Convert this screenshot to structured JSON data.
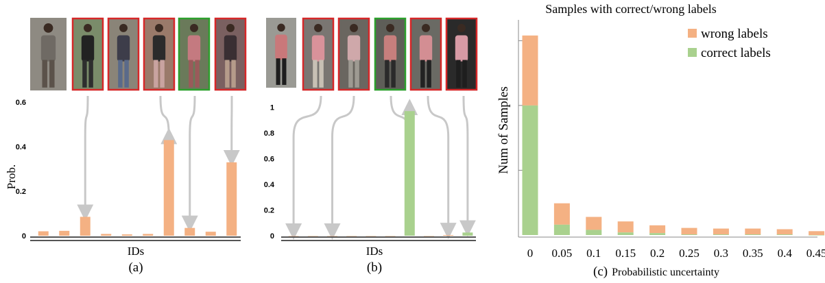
{
  "colors": {
    "wrong": "#F4B183",
    "correct": "#A9D18E",
    "red_border": "#D62728",
    "green_border": "#2CA02C",
    "arrow": "#C8C8C8",
    "axis": "#555555"
  },
  "panel_a": {
    "caption": "(a)",
    "xlabel": "IDs",
    "ylabel": "Prob.",
    "query_photo": "person-photo",
    "gallery_frames": [
      "red",
      "red",
      "red",
      "green",
      "red"
    ]
  },
  "panel_b": {
    "caption": "(b)",
    "xlabel": "IDs",
    "query_photo": "person-photo",
    "gallery_frames": [
      "red",
      "red",
      "green",
      "red",
      "red"
    ]
  },
  "panel_c": {
    "caption": "(c)",
    "xlabel_suffix": "Probabilistic uncertainty"
  },
  "chart_data": [
    {
      "type": "bar",
      "title": "",
      "xlabel": "IDs",
      "ylabel": "Prob.",
      "ylim": [
        0,
        0.65
      ],
      "yticks": [
        "0",
        "0.2",
        "0.4",
        "0.6"
      ],
      "ytick_values": [
        0,
        0.2,
        0.4,
        0.6
      ],
      "values": [
        0.02,
        0.022,
        0.085,
        0.008,
        0.006,
        0.008,
        0.43,
        0.035,
        0.018,
        0.33
      ],
      "bar_colors": [
        "wrong",
        "wrong",
        "wrong",
        "wrong",
        "wrong",
        "wrong",
        "wrong",
        "wrong",
        "wrong",
        "wrong"
      ],
      "arrow_targets": [
        2,
        6,
        7,
        9
      ]
    },
    {
      "type": "bar",
      "title": "",
      "xlabel": "IDs",
      "ylabel": "",
      "ylim": [
        0,
        1.12
      ],
      "yticks": [
        "0",
        "0.2",
        "0.4",
        "0.6",
        "0.8",
        "1"
      ],
      "ytick_values": [
        0,
        0.2,
        0.4,
        0.6,
        0.8,
        1
      ],
      "values": [
        0,
        0,
        0,
        0,
        0,
        0,
        0.97,
        0,
        0.005,
        0.025
      ],
      "bar_colors": [
        "wrong",
        "wrong",
        "wrong",
        "wrong",
        "wrong",
        "wrong",
        "correct",
        "wrong",
        "wrong",
        "correct"
      ],
      "arrow_targets": [
        0,
        2,
        6,
        8,
        9
      ]
    },
    {
      "type": "bar",
      "title": "Samples with correct/wrong labels",
      "xlabel": "Probabilistic uncertainty",
      "ylabel": "Num of Samples",
      "categories": [
        "0",
        "0.05",
        "0.1",
        "0.15",
        "0.2",
        "0.25",
        "0.3",
        "0.35",
        "0.4",
        "0.45"
      ],
      "ylim": [
        0,
        330
      ],
      "series": [
        {
          "name": "correct labels",
          "values": [
            200,
            16,
            8,
            4,
            3,
            1,
            1,
            1,
            1,
            0
          ]
        },
        {
          "name": "wrong labels",
          "values": [
            108,
            33,
            20,
            17,
            12,
            10,
            9,
            9,
            8,
            6
          ]
        }
      ],
      "stacked": true,
      "legend": "top-right",
      "grid": false
    }
  ]
}
